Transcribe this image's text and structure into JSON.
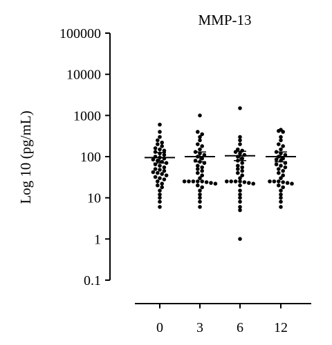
{
  "chart_data": {
    "type": "scatter",
    "title": "MMP-13",
    "ylabel": "Log 10 (pg/mL)",
    "xlabel": "",
    "yscale": "log",
    "ylim": [
      0.1,
      100000
    ],
    "y_ticks": [
      {
        "value": 0.1,
        "label": "0.1"
      },
      {
        "value": 1,
        "label": "1"
      },
      {
        "value": 10,
        "label": "10"
      },
      {
        "value": 100,
        "label": "100"
      },
      {
        "value": 1000,
        "label": "1000"
      },
      {
        "value": 10000,
        "label": "10000"
      },
      {
        "value": 100000,
        "label": "100000"
      }
    ],
    "categories": [
      "0",
      "3",
      "6",
      "12"
    ],
    "mean_lines": [
      95,
      100,
      105,
      100
    ],
    "error_bars": [
      [
        70,
        125
      ],
      [
        75,
        130
      ],
      [
        80,
        135
      ],
      [
        75,
        130
      ]
    ],
    "groups": [
      {
        "category": "0",
        "values": [
          600,
          400,
          300,
          250,
          220,
          200,
          180,
          160,
          150,
          140,
          130,
          120,
          110,
          100,
          95,
          90,
          85,
          80,
          75,
          70,
          65,
          60,
          55,
          50,
          48,
          45,
          42,
          40,
          38,
          35,
          32,
          30,
          28,
          25,
          22,
          20,
          18,
          15,
          12,
          10,
          8,
          6
        ]
      },
      {
        "category": "3",
        "values": [
          1000,
          400,
          350,
          300,
          250,
          200,
          180,
          150,
          130,
          120,
          110,
          100,
          90,
          80,
          75,
          70,
          60,
          55,
          50,
          45,
          40,
          35,
          30,
          25,
          25,
          25,
          25,
          25,
          24,
          23,
          22,
          20,
          18,
          15,
          12,
          10,
          8,
          6
        ]
      },
      {
        "category": "6",
        "values": [
          1500,
          300,
          250,
          200,
          150,
          140,
          130,
          120,
          110,
          100,
          90,
          80,
          70,
          60,
          55,
          50,
          45,
          40,
          35,
          30,
          25,
          25,
          25,
          25,
          24,
          23,
          22,
          20,
          15,
          12,
          10,
          8,
          6,
          5,
          1
        ]
      },
      {
        "category": "12",
        "values": [
          450,
          420,
          400,
          300,
          250,
          200,
          180,
          150,
          130,
          120,
          110,
          100,
          90,
          85,
          80,
          70,
          65,
          60,
          55,
          50,
          45,
          40,
          35,
          30,
          25,
          25,
          25,
          24,
          23,
          22,
          20,
          18,
          15,
          12,
          10,
          8,
          6
        ]
      }
    ]
  }
}
